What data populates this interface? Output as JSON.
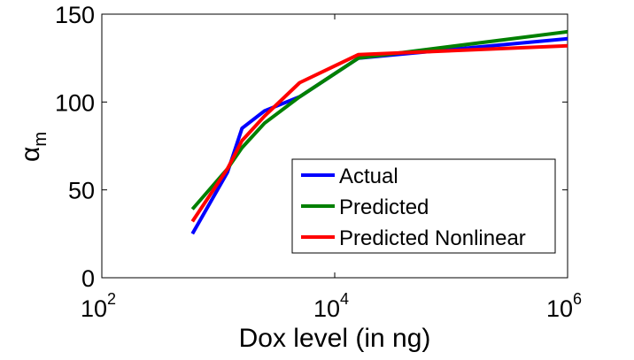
{
  "chart_data": {
    "type": "line",
    "title": "",
    "xlabel": "Dox level (in ng)",
    "ylabel_base": "α",
    "ylabel_sub": "m",
    "x_scale": "log",
    "xlim": [
      100,
      1000000
    ],
    "ylim": [
      0,
      150
    ],
    "x_ticks": [
      {
        "value": 100,
        "base": "10",
        "exp": "2"
      },
      {
        "value": 10000,
        "base": "10",
        "exp": "4"
      },
      {
        "value": 1000000,
        "base": "10",
        "exp": "6"
      }
    ],
    "y_ticks": [
      {
        "value": 0,
        "label": "0"
      },
      {
        "value": 50,
        "label": "50"
      },
      {
        "value": 100,
        "label": "100"
      },
      {
        "value": 150,
        "label": "150"
      }
    ],
    "grid": false,
    "legend_position": "lower-right",
    "series": [
      {
        "name": "Actual",
        "color": "#0000ff",
        "x": [
          600,
          1200,
          1600,
          2500,
          5000,
          16000,
          1000000
        ],
        "y": [
          25,
          60,
          85,
          95,
          103,
          125,
          136
        ]
      },
      {
        "name": "Predicted",
        "color": "#008000",
        "x": [
          600,
          1200,
          1600,
          2500,
          5000,
          16000,
          1000000
        ],
        "y": [
          39,
          62,
          74,
          88,
          103,
          125,
          140
        ]
      },
      {
        "name": "Predicted Nonlinear",
        "color": "#ff0000",
        "x": [
          600,
          1200,
          1600,
          2500,
          5000,
          16000,
          1000000
        ],
        "y": [
          32,
          62,
          78,
          92,
          111,
          127,
          132
        ]
      }
    ]
  }
}
